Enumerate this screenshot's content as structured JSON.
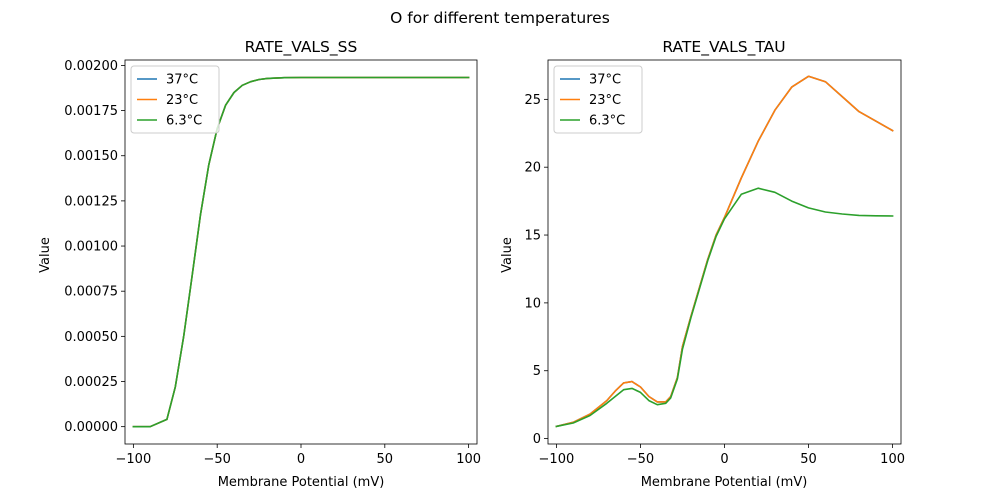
{
  "suptitle": "O for different temperatures",
  "chart_data": [
    {
      "type": "line",
      "title": "RATE_VALS_SS",
      "xlabel": "Membrane Potential (mV)",
      "ylabel": "Value",
      "xlim": [
        -105,
        105
      ],
      "ylim": [
        -9.6e-05,
        0.00203
      ],
      "xticks": [
        -100,
        -50,
        0,
        50,
        100
      ],
      "xtick_labels": [
        "−100",
        "−50",
        "0",
        "50",
        "100"
      ],
      "yticks": [
        0,
        0.00025,
        0.0005,
        0.00075,
        0.001,
        0.00125,
        0.0015,
        0.00175,
        0.002
      ],
      "ytick_labels": [
        "0.00000",
        "0.00025",
        "0.00050",
        "0.00075",
        "0.00100",
        "0.00125",
        "0.00150",
        "0.00175",
        "0.00200"
      ],
      "legend_position": "upper-left",
      "series": [
        {
          "name": "37°C",
          "color": "#1f77b4",
          "x": [
            -100,
            -90,
            -80,
            -75,
            -70,
            -65,
            -60,
            -55,
            -50,
            -45,
            -40,
            -35,
            -30,
            -25,
            -20,
            -10,
            0,
            20,
            50,
            100
          ],
          "y": [
            0.0,
            0.0,
            4e-05,
            0.00022,
            0.0005,
            0.00083,
            0.00117,
            0.00145,
            0.00165,
            0.00178,
            0.00185,
            0.00189,
            0.00191,
            0.001922,
            0.001928,
            0.001932,
            0.001933,
            0.001933,
            0.001933,
            0.001933
          ]
        },
        {
          "name": "23°C",
          "color": "#ff7f0e",
          "x": [
            -100,
            -90,
            -80,
            -75,
            -70,
            -65,
            -60,
            -55,
            -50,
            -45,
            -40,
            -35,
            -30,
            -25,
            -20,
            -10,
            0,
            20,
            50,
            100
          ],
          "y": [
            0.0,
            0.0,
            4e-05,
            0.00022,
            0.0005,
            0.00083,
            0.00117,
            0.00145,
            0.00165,
            0.00178,
            0.00185,
            0.00189,
            0.00191,
            0.001922,
            0.001928,
            0.001932,
            0.001933,
            0.001933,
            0.001933,
            0.001933
          ]
        },
        {
          "name": "6.3°C",
          "color": "#2ca02c",
          "x": [
            -100,
            -90,
            -80,
            -75,
            -70,
            -65,
            -60,
            -55,
            -50,
            -45,
            -40,
            -35,
            -30,
            -25,
            -20,
            -10,
            0,
            20,
            50,
            100
          ],
          "y": [
            0.0,
            0.0,
            4e-05,
            0.00022,
            0.0005,
            0.00083,
            0.00117,
            0.00145,
            0.00165,
            0.00178,
            0.00185,
            0.00189,
            0.00191,
            0.001922,
            0.001928,
            0.001932,
            0.001933,
            0.001933,
            0.001933,
            0.001933
          ]
        }
      ]
    },
    {
      "type": "line",
      "title": "RATE_VALS_TAU",
      "xlabel": "Membrane Potential (mV)",
      "ylabel": "Value",
      "xlim": [
        -105,
        105
      ],
      "ylim": [
        -0.4,
        27.9
      ],
      "xticks": [
        -100,
        -50,
        0,
        50,
        100
      ],
      "xtick_labels": [
        "−100",
        "−50",
        "0",
        "50",
        "100"
      ],
      "yticks": [
        0,
        5,
        10,
        15,
        20,
        25
      ],
      "ytick_labels": [
        "0",
        "5",
        "10",
        "15",
        "20",
        "25"
      ],
      "legend_position": "upper-left",
      "series": [
        {
          "name": "37°C",
          "color": "#1f77b4",
          "x": [
            -100,
            -90,
            -80,
            -70,
            -65,
            -60,
            -55,
            -50,
            -45,
            -40,
            -35,
            -32,
            -28,
            -25,
            -20,
            -15,
            -10,
            -5,
            0,
            10,
            20,
            30,
            40,
            50,
            60,
            70,
            80,
            90,
            100
          ],
          "y": [
            0.9,
            1.2,
            1.8,
            2.8,
            3.5,
            4.1,
            4.2,
            3.8,
            3.1,
            2.7,
            2.7,
            3.1,
            4.5,
            6.8,
            9.0,
            11.1,
            13.2,
            15.0,
            16.3,
            19.2,
            21.9,
            24.2,
            25.9,
            26.7,
            26.3,
            25.2,
            24.1,
            23.4,
            22.7
          ]
        },
        {
          "name": "23°C",
          "color": "#ff7f0e",
          "x": [
            -100,
            -90,
            -80,
            -70,
            -65,
            -60,
            -55,
            -50,
            -45,
            -40,
            -35,
            -32,
            -28,
            -25,
            -20,
            -15,
            -10,
            -5,
            0,
            10,
            20,
            30,
            40,
            50,
            60,
            70,
            80,
            90,
            100
          ],
          "y": [
            0.9,
            1.2,
            1.8,
            2.8,
            3.5,
            4.1,
            4.2,
            3.8,
            3.1,
            2.7,
            2.7,
            3.1,
            4.5,
            6.8,
            9.0,
            11.1,
            13.2,
            15.0,
            16.3,
            19.2,
            21.9,
            24.2,
            25.9,
            26.7,
            26.3,
            25.2,
            24.1,
            23.4,
            22.7
          ]
        },
        {
          "name": "6.3°C",
          "color": "#2ca02c",
          "x": [
            -100,
            -90,
            -80,
            -70,
            -65,
            -60,
            -55,
            -50,
            -45,
            -40,
            -35,
            -32,
            -28,
            -25,
            -20,
            -15,
            -10,
            -5,
            0,
            10,
            20,
            30,
            40,
            50,
            60,
            70,
            80,
            90,
            100
          ],
          "y": [
            0.9,
            1.15,
            1.7,
            2.6,
            3.1,
            3.6,
            3.7,
            3.4,
            2.8,
            2.5,
            2.6,
            3.0,
            4.4,
            6.6,
            8.9,
            11.0,
            13.1,
            14.9,
            16.2,
            18.0,
            18.45,
            18.15,
            17.5,
            17.0,
            16.7,
            16.55,
            16.45,
            16.42,
            16.4
          ]
        }
      ]
    }
  ]
}
